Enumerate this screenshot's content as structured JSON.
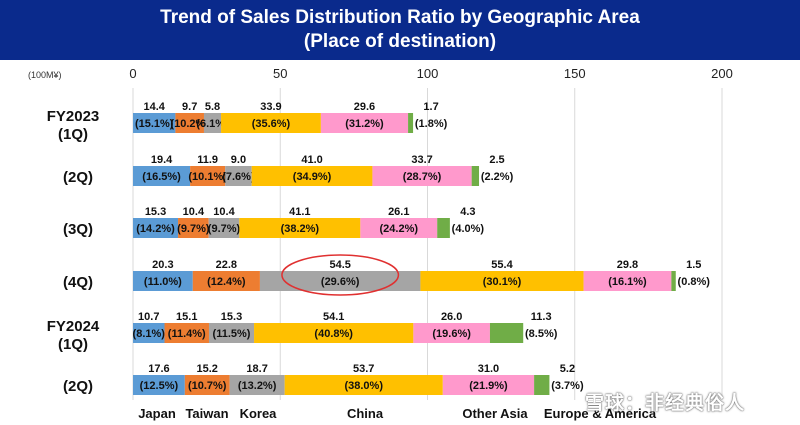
{
  "chart_data": {
    "type": "bar",
    "orientation": "horizontal-stacked",
    "title": "Trend of Sales Distribution Ratio by Geographic Area",
    "subtitle": "(Place of destination)",
    "unit_label": "(100M¥)",
    "xlim": [
      0,
      200
    ],
    "ticks": [
      0,
      50,
      100,
      150,
      200
    ],
    "tick_labels": [
      "0",
      "50",
      "100",
      "150",
      "200"
    ],
    "grid": true,
    "categories": [
      {
        "line1": "FY2023",
        "line2": "(1Q)"
      },
      {
        "line1": "",
        "line2": "(2Q)"
      },
      {
        "line1": "",
        "line2": "(3Q)"
      },
      {
        "line1": "",
        "line2": "(4Q)"
      },
      {
        "line1": "FY2024",
        "line2": "(1Q)"
      },
      {
        "line1": "",
        "line2": "(2Q)"
      }
    ],
    "series": [
      {
        "name": "Japan",
        "color": "#5b9bd5",
        "values": [
          14.4,
          19.4,
          15.3,
          20.3,
          10.7,
          17.6
        ],
        "value_labels": [
          "14.4",
          "19.4",
          "15.3",
          "20.3",
          "10.7",
          "17.6"
        ],
        "pct_labels": [
          "(15.1%)",
          "(16.5%)",
          "(14.2%)",
          "(11.0%)",
          "(8.1%)",
          "(12.5%)"
        ]
      },
      {
        "name": "Taiwan",
        "color": "#ed7d31",
        "values": [
          9.7,
          11.9,
          10.4,
          22.8,
          15.1,
          15.2
        ],
        "value_labels": [
          "9.7",
          "11.9",
          "10.4",
          "22.8",
          "15.1",
          "15.2"
        ],
        "pct_labels": [
          "(10.2%)",
          "(10.1%)",
          "(9.7%)",
          "(12.4%)",
          "(11.4%)",
          "(10.7%)"
        ]
      },
      {
        "name": "Korea",
        "color": "#a5a5a5",
        "values": [
          5.8,
          9.0,
          10.4,
          54.5,
          15.3,
          18.7
        ],
        "value_labels": [
          "5.8",
          "9.0",
          "10.4",
          "54.5",
          "15.3",
          "18.7"
        ],
        "pct_labels": [
          "(6.1%)",
          "(7.6%)",
          "(9.7%)",
          "(29.6%)",
          "(11.5%)",
          "(13.2%)"
        ]
      },
      {
        "name": "China",
        "color": "#ffc000",
        "values": [
          33.9,
          41.0,
          41.1,
          55.4,
          54.1,
          53.7
        ],
        "value_labels": [
          "33.9",
          "41.0",
          "41.1",
          "55.4",
          "54.1",
          "53.7"
        ],
        "pct_labels": [
          "(35.6%)",
          "(34.9%)",
          "(38.2%)",
          "(30.1%)",
          "(40.8%)",
          "(38.0%)"
        ]
      },
      {
        "name": "Other Asia",
        "color": "#ff99cc",
        "values": [
          29.6,
          33.7,
          26.1,
          29.8,
          26.0,
          31.0
        ],
        "value_labels": [
          "29.6",
          "33.7",
          "26.1",
          "29.8",
          "26.0",
          "31.0"
        ],
        "pct_labels": [
          "(31.2%)",
          "(28.7%)",
          "(24.2%)",
          "(16.1%)",
          "(19.6%)",
          "(21.9%)"
        ]
      },
      {
        "name": "Europe & America",
        "color": "#70ad47",
        "values": [
          1.7,
          2.5,
          4.3,
          1.5,
          11.3,
          5.2
        ],
        "value_labels": [
          "1.7",
          "2.5",
          "4.3",
          "1.5",
          "11.3",
          "5.2"
        ],
        "pct_labels": [
          "(1.8%)",
          "(2.2%)",
          "(4.0%)",
          "(0.8%)",
          "(8.5%)",
          "(3.7%)"
        ]
      }
    ],
    "legend": {
      "placement": "bottom",
      "labels": [
        "Japan",
        "Taiwan",
        "Korea",
        "China",
        "Other Asia",
        "Europe & America"
      ]
    },
    "annotation": {
      "type": "ellipse",
      "category": "(4Q)",
      "series": "Korea",
      "color": "#e03030"
    }
  },
  "watermark": "雪球：非经典俗人"
}
